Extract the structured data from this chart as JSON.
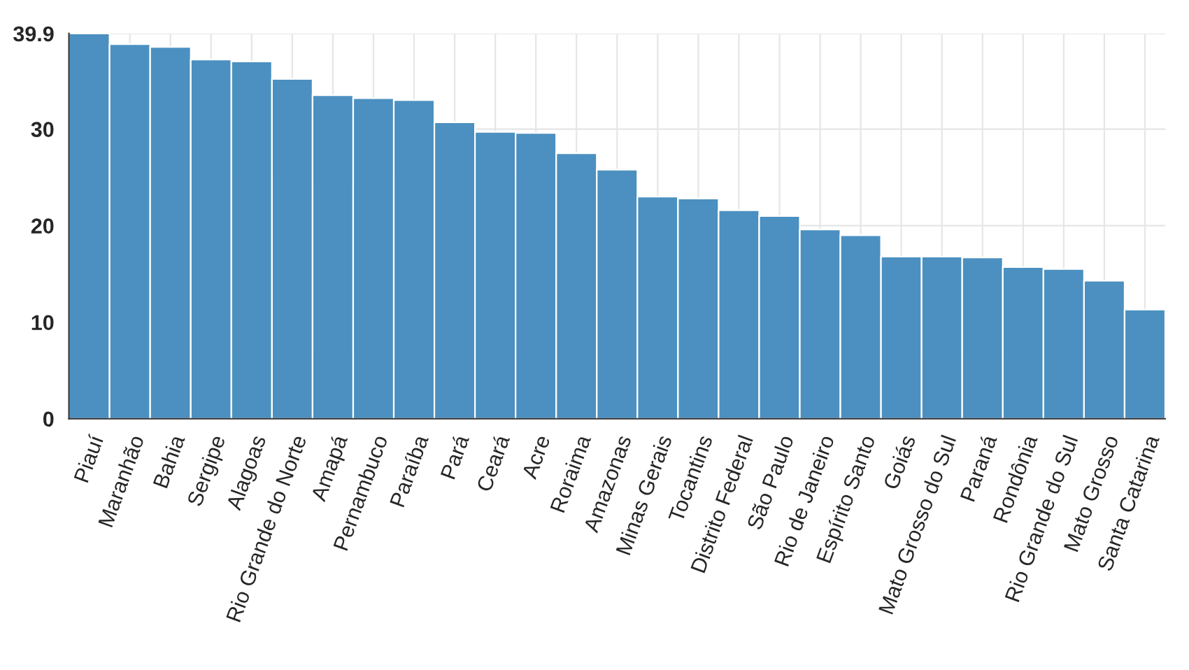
{
  "chart_data": {
    "type": "bar",
    "categories": [
      "Piauí",
      "Maranhão",
      "Bahia",
      "Sergipe",
      "Alagoas",
      "Rio Grande do Norte",
      "Amapá",
      "Pernambuco",
      "Paraíba",
      "Pará",
      "Ceará",
      "Acre",
      "Roraima",
      "Amazonas",
      "Minas Gerais",
      "Tocantins",
      "Distrito Federal",
      "São Paulo",
      "Rio de Janeiro",
      "Espírito Santo",
      "Goiás",
      "Mato Grosso do Sul",
      "Paraná",
      "Rondônia",
      "Rio Grande do Sul",
      "Mato Grosso",
      "Santa Catarina"
    ],
    "values": [
      39.9,
      38.8,
      38.5,
      37.2,
      37.0,
      35.2,
      33.5,
      33.2,
      33.0,
      30.7,
      29.7,
      29.6,
      27.5,
      25.8,
      23.0,
      22.8,
      21.6,
      21.0,
      19.6,
      19.0,
      16.8,
      16.8,
      16.7,
      15.7,
      15.5,
      14.3,
      11.3
    ],
    "color": "#4b90c0",
    "ylim": [
      0,
      39.9
    ],
    "yticks": [
      0,
      10,
      20,
      30,
      39.9
    ],
    "grid": true
  }
}
